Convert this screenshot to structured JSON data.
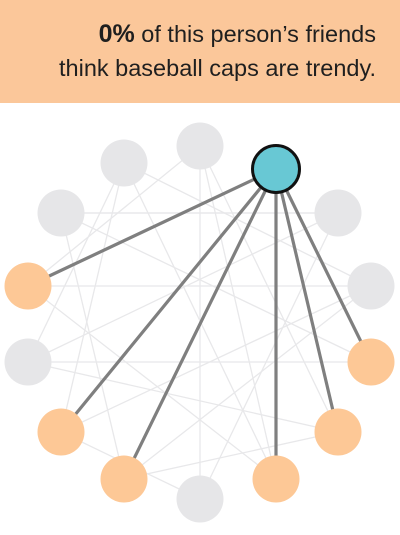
{
  "headline": {
    "percent": "0%",
    "line1_rest": " of this person’s friends",
    "line2": "think baseball caps are trendy."
  },
  "colors": {
    "banner_bg": "#fbc79a",
    "gray_node": "#e6e6e8",
    "orange_node": "#fdc896",
    "focal_node": "#68c8d4",
    "focal_edge": "#7f7f7f",
    "background_edge": "#e8e8ea"
  },
  "network": {
    "focal_node": "n0",
    "nodes": [
      {
        "id": "n0",
        "type": "focal"
      },
      {
        "id": "n1",
        "type": "gray"
      },
      {
        "id": "n2",
        "type": "gray"
      },
      {
        "id": "n3",
        "type": "gray"
      },
      {
        "id": "n4",
        "type": "orange"
      },
      {
        "id": "n5",
        "type": "gray"
      },
      {
        "id": "n6",
        "type": "orange"
      },
      {
        "id": "n7",
        "type": "orange"
      },
      {
        "id": "n8",
        "type": "gray"
      },
      {
        "id": "n9",
        "type": "orange"
      },
      {
        "id": "n10",
        "type": "orange"
      },
      {
        "id": "n11",
        "type": "orange"
      },
      {
        "id": "n12",
        "type": "gray"
      },
      {
        "id": "n13",
        "type": "gray"
      }
    ],
    "focal_edges": [
      [
        "n0",
        "n4"
      ],
      [
        "n0",
        "n6"
      ],
      [
        "n0",
        "n7"
      ],
      [
        "n0",
        "n9"
      ],
      [
        "n0",
        "n10"
      ],
      [
        "n0",
        "n11"
      ]
    ],
    "background_edges": [
      [
        "n1",
        "n8"
      ],
      [
        "n1",
        "n10"
      ],
      [
        "n2",
        "n5"
      ],
      [
        "n2",
        "n9"
      ],
      [
        "n2",
        "n12"
      ],
      [
        "n3",
        "n7"
      ],
      [
        "n3",
        "n11"
      ],
      [
        "n3",
        "n13"
      ],
      [
        "n4",
        "n12"
      ],
      [
        "n4",
        "n9"
      ],
      [
        "n5",
        "n10"
      ],
      [
        "n5",
        "n13"
      ],
      [
        "n6",
        "n2"
      ],
      [
        "n6",
        "n8"
      ],
      [
        "n7",
        "n12"
      ],
      [
        "n8",
        "n13"
      ],
      [
        "n9",
        "n1"
      ],
      [
        "n11",
        "n5"
      ],
      [
        "n12",
        "n6"
      ],
      [
        "n13",
        "n3"
      ],
      [
        "n1",
        "n4"
      ],
      [
        "n10",
        "n7"
      ]
    ]
  }
}
